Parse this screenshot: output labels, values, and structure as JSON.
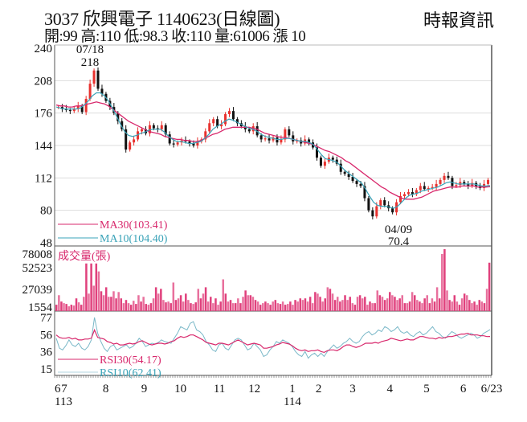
{
  "header": {
    "title": "3037  欣興電子 1140623(日線圖)",
    "subtitle": "開:99 高:110 低:98.3 收:110 量:61006 漲 10",
    "brand": "時報資訊"
  },
  "colors": {
    "up": "#e8322f",
    "down": "#111111",
    "ma30": "#d8286c",
    "ma10": "#3aa3b8",
    "volume": "#e0407c",
    "rsi30": "#d8286c",
    "rsi10": "#7ab8c8",
    "grid": "#dddddd",
    "axis": "#555555"
  },
  "chart_data": [
    {
      "type": "candlestick",
      "title": "3037 欣興電子 1140623(日線圖)",
      "ylim": [
        48,
        240
      ],
      "yticks": [
        240,
        208,
        176,
        144,
        112,
        80,
        48
      ],
      "annotations": [
        {
          "label": "07/18",
          "value": "218"
        },
        {
          "label": "04/09",
          "value": "70.4"
        }
      ],
      "legend": [
        {
          "name": "MA30",
          "value": "103.41"
        },
        {
          "name": "MA10",
          "value": "104.40"
        }
      ],
      "close_path": [
        182,
        180,
        179,
        178,
        180,
        183,
        177,
        190,
        205,
        218,
        200,
        195,
        188,
        182,
        176,
        168,
        160,
        140,
        147,
        150,
        158,
        160,
        156,
        164,
        161,
        160,
        164,
        155,
        146,
        145,
        147,
        149,
        148,
        146,
        144,
        148,
        150,
        158,
        166,
        170,
        163,
        165,
        175,
        178,
        170,
        166,
        163,
        160,
        158,
        163,
        154,
        150,
        151,
        149,
        152,
        147,
        150,
        160,
        154,
        148,
        149,
        146,
        150,
        147,
        142,
        132,
        124,
        128,
        132,
        130,
        126,
        118,
        116,
        113,
        109,
        106,
        104,
        92,
        80,
        74,
        84,
        90,
        85,
        82,
        78,
        88,
        94,
        96,
        98,
        96,
        100,
        104,
        101,
        102,
        103,
        106,
        110,
        114,
        112,
        104,
        105,
        108,
        106,
        104,
        107,
        104,
        102,
        106,
        110
      ],
      "ma30_path": [
        184,
        183,
        183,
        182,
        182,
        183,
        183,
        184,
        185,
        186,
        187,
        186,
        185,
        183,
        180,
        177,
        174,
        171,
        168,
        166,
        164,
        162,
        160,
        158,
        157,
        156,
        155,
        153,
        152,
        151,
        150,
        150,
        149,
        149,
        148,
        148,
        149,
        151,
        153,
        155,
        156,
        158,
        160,
        161,
        162,
        162,
        162,
        162,
        162,
        161,
        160,
        158,
        156,
        155,
        154,
        153,
        152,
        152,
        151,
        150,
        149,
        148,
        147,
        146,
        145,
        143,
        141,
        139,
        138,
        136,
        134,
        132,
        129,
        127,
        124,
        121,
        118,
        115,
        112,
        109,
        106,
        103,
        101,
        98,
        96,
        94,
        92,
        91,
        91,
        91,
        92,
        93,
        95,
        97,
        99,
        100,
        101,
        102,
        103,
        103,
        103,
        104,
        104,
        104,
        104,
        103,
        103,
        103,
        103.4
      ],
      "ma10_path": [
        182,
        181,
        180,
        180,
        180,
        180,
        181,
        184,
        188,
        193,
        196,
        196,
        193,
        188,
        181,
        173,
        165,
        158,
        154,
        153,
        154,
        156,
        157,
        159,
        160,
        160,
        160,
        157,
        153,
        150,
        148,
        148,
        147,
        146,
        146,
        147,
        148,
        151,
        155,
        160,
        163,
        165,
        168,
        170,
        169,
        167,
        165,
        163,
        161,
        160,
        158,
        155,
        153,
        152,
        151,
        150,
        150,
        151,
        151,
        150,
        149,
        148,
        148,
        147,
        145,
        140,
        135,
        131,
        130,
        129,
        127,
        123,
        119,
        116,
        113,
        110,
        107,
        101,
        94,
        88,
        85,
        84,
        84,
        83,
        82,
        84,
        88,
        92,
        95,
        96,
        97,
        99,
        100,
        101,
        102,
        103,
        105,
        107,
        108,
        107,
        106,
        106,
        106,
        106,
        106,
        105,
        104,
        104,
        104.4
      ]
    },
    {
      "type": "bar",
      "title": "成交量(張)",
      "ylim": [
        0,
        78008
      ],
      "yticks": [
        78008,
        52523,
        27039,
        1554
      ],
      "values": [
        8000,
        20000,
        12000,
        10000,
        9000,
        6000,
        8000,
        7000,
        16000,
        11000,
        8000,
        18000,
        60000,
        22000,
        60000,
        32000,
        60000,
        50000,
        25000,
        20000,
        30000,
        18000,
        18000,
        25000,
        16000,
        24000,
        16000,
        10000,
        14000,
        10000,
        8000,
        13000,
        9000,
        20000,
        12000,
        18000,
        9000,
        8000,
        10000,
        16000,
        30000,
        22000,
        28000,
        14000,
        11000,
        12000,
        10000,
        36000,
        14000,
        16000,
        20000,
        12000,
        22000,
        14000,
        10000,
        9000,
        11000,
        28000,
        16000,
        22000,
        30000,
        12000,
        18000,
        10000,
        16000,
        8000,
        12000,
        40000,
        22000,
        12000,
        14000,
        10000,
        10000,
        16000,
        10000,
        18000,
        26000,
        20000,
        20000,
        18000,
        14000,
        12000,
        8000,
        10000,
        12000,
        10000,
        8000,
        12000,
        14000,
        10000,
        9000,
        12000,
        8000,
        9000,
        12000,
        8000,
        14000,
        12000,
        16000,
        14000,
        16000,
        12000,
        18000,
        10000,
        24000,
        22000,
        18000,
        12000,
        16000,
        30000,
        28000,
        22000,
        14000,
        18000,
        12000,
        14000,
        20000,
        14000,
        18000,
        10000,
        8000,
        18000,
        20000,
        16000,
        18000,
        8000,
        12000,
        10000,
        10000,
        26000,
        20000,
        18000,
        14000,
        16000,
        24000,
        20000,
        18000,
        14000,
        16000,
        20000,
        10000,
        10000,
        12000,
        24000,
        20000,
        14000,
        12000,
        10000,
        16000,
        20000,
        10000,
        16000,
        12000,
        30000,
        16000,
        72000,
        78000,
        26000,
        14000,
        12000,
        20000,
        12000,
        8000,
        16000,
        22000,
        20000,
        14000,
        10000,
        12000,
        8000,
        14000,
        12000,
        10000,
        28000,
        61006
      ]
    },
    {
      "type": "line",
      "title": "RSI",
      "ylim": [
        15,
        77
      ],
      "yticks": [
        77,
        56,
        36,
        15
      ],
      "legend": [
        {
          "name": "RSI30",
          "value": "54.17"
        },
        {
          "name": "RSI10",
          "value": "62.41"
        }
      ],
      "series": [
        {
          "name": "RSI30",
          "values": [
            56,
            53,
            52,
            52,
            53,
            51,
            52,
            50,
            50,
            51,
            51,
            52,
            62,
            53,
            52,
            51,
            48,
            47,
            45,
            46,
            44,
            44,
            45,
            46,
            45,
            46,
            48,
            49,
            47,
            45,
            44,
            45,
            46,
            46,
            45,
            46,
            48,
            49,
            52,
            54,
            53,
            54,
            56,
            56,
            54,
            52,
            50,
            47,
            46,
            45,
            44,
            46,
            46,
            45,
            44,
            46,
            48,
            50,
            48,
            46,
            44,
            45,
            46,
            45,
            44,
            40,
            40,
            41,
            42,
            44,
            45,
            47,
            46,
            45,
            43,
            40,
            38,
            37,
            38,
            36,
            37,
            37,
            38,
            36,
            35,
            37,
            38,
            38,
            37,
            39,
            42,
            44,
            44,
            42,
            41,
            42,
            44,
            46,
            46,
            46,
            47,
            46,
            48,
            49,
            50,
            52,
            51,
            50,
            49,
            50,
            51,
            50,
            50,
            52,
            54,
            54,
            53,
            52,
            52,
            51,
            53,
            52,
            53,
            54,
            54,
            55,
            56,
            57,
            57,
            58,
            56,
            56,
            56,
            55,
            55,
            54,
            54.17
          ]
        },
        {
          "name": "RSI10",
          "values": [
            52,
            40,
            38,
            43,
            50,
            44,
            42,
            46,
            40,
            38,
            42,
            50,
            77,
            58,
            48,
            40,
            36,
            42,
            44,
            38,
            40,
            42,
            44,
            40,
            42,
            46,
            52,
            48,
            42,
            44,
            46,
            45,
            47,
            50,
            48,
            47,
            46,
            52,
            58,
            66,
            64,
            62,
            70,
            72,
            62,
            60,
            56,
            48,
            44,
            38,
            36,
            44,
            46,
            40,
            38,
            44,
            50,
            52,
            50,
            44,
            38,
            40,
            46,
            42,
            38,
            30,
            32,
            38,
            42,
            48,
            46,
            50,
            48,
            46,
            42,
            36,
            32,
            30,
            36,
            28,
            32,
            34,
            30,
            34,
            30,
            36,
            40,
            44,
            40,
            42,
            46,
            48,
            52,
            48,
            46,
            48,
            54,
            58,
            60,
            56,
            58,
            62,
            60,
            66,
            64,
            60,
            62,
            66,
            60,
            58,
            60,
            56,
            54,
            58,
            60,
            56,
            58,
            62,
            66,
            60,
            58,
            54,
            52,
            56,
            60,
            58,
            54,
            52,
            54,
            56,
            58,
            56,
            52,
            54,
            58,
            60,
            62.41
          ]
        }
      ]
    }
  ],
  "xaxis": {
    "ticks": [
      {
        "label": "6",
        "pos": 0.0
      },
      {
        "label": "7",
        "pos": 0.022
      },
      {
        "label": "8",
        "pos": 0.117
      },
      {
        "label": "9",
        "pos": 0.205
      },
      {
        "label": "10",
        "pos": 0.288
      },
      {
        "label": "11",
        "pos": 0.377
      },
      {
        "label": "12",
        "pos": 0.457
      },
      {
        "label": "1",
        "pos": 0.544
      },
      {
        "label": "2",
        "pos": 0.604
      },
      {
        "label": "3",
        "pos": 0.682
      },
      {
        "label": "4",
        "pos": 0.767
      },
      {
        "label": "5",
        "pos": 0.851
      },
      {
        "label": "6",
        "pos": 0.935
      },
      {
        "label": "6/23",
        "pos": 1.0
      }
    ],
    "year_labels": [
      {
        "label": "113",
        "pos": 0.0
      },
      {
        "label": "114",
        "pos": 0.544
      }
    ]
  }
}
